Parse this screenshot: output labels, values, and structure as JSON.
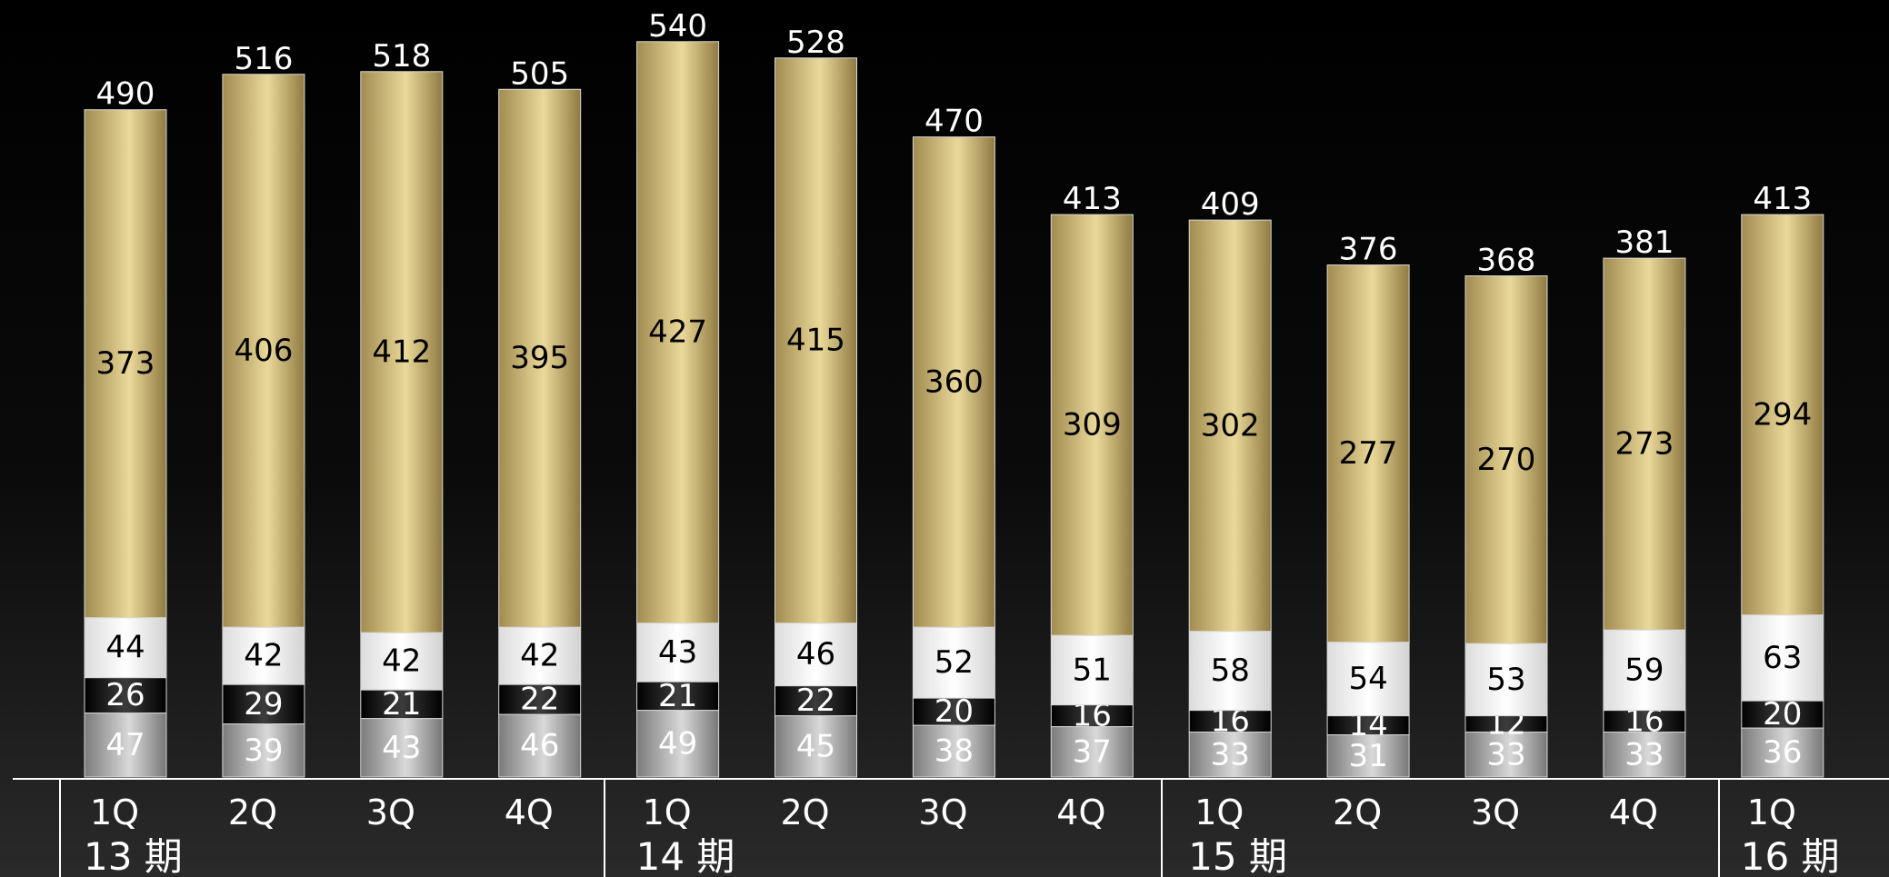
{
  "chart_data": {
    "type": "bar",
    "stacked": true,
    "categories": [
      "1Q",
      "2Q",
      "3Q",
      "4Q",
      "1Q",
      "2Q",
      "3Q",
      "4Q",
      "1Q",
      "2Q",
      "3Q",
      "4Q",
      "1Q"
    ],
    "periods": [
      {
        "label": "13 期",
        "start": 0,
        "count": 4
      },
      {
        "label": "14 期",
        "start": 4,
        "count": 4
      },
      {
        "label": "15 期",
        "start": 8,
        "count": 4
      },
      {
        "label": "16 期",
        "start": 12,
        "count": 1
      }
    ],
    "series": [
      {
        "color": "#9a9a9a",
        "text_color": "#ffffff",
        "values": [
          47,
          39,
          43,
          46,
          49,
          45,
          38,
          37,
          33,
          31,
          33,
          33,
          36
        ]
      },
      {
        "color": "#111111",
        "text_color": "#ffffff",
        "values": [
          26,
          29,
          21,
          22,
          21,
          22,
          20,
          16,
          16,
          14,
          12,
          16,
          20
        ]
      },
      {
        "color": "#f4f4f4",
        "text_color": "#000000",
        "values": [
          44,
          42,
          42,
          42,
          43,
          46,
          52,
          51,
          58,
          54,
          53,
          59,
          63
        ]
      },
      {
        "color": "#c8b273",
        "text_color": "#000000",
        "values": [
          373,
          406,
          412,
          395,
          427,
          415,
          360,
          309,
          302,
          277,
          270,
          273,
          294
        ]
      }
    ],
    "totals": [
      490,
      516,
      518,
      505,
      540,
      528,
      470,
      413,
      409,
      376,
      368,
      381,
      413
    ],
    "ylim": [
      0,
      560
    ],
    "title": "",
    "xlabel": "",
    "ylabel": ""
  }
}
